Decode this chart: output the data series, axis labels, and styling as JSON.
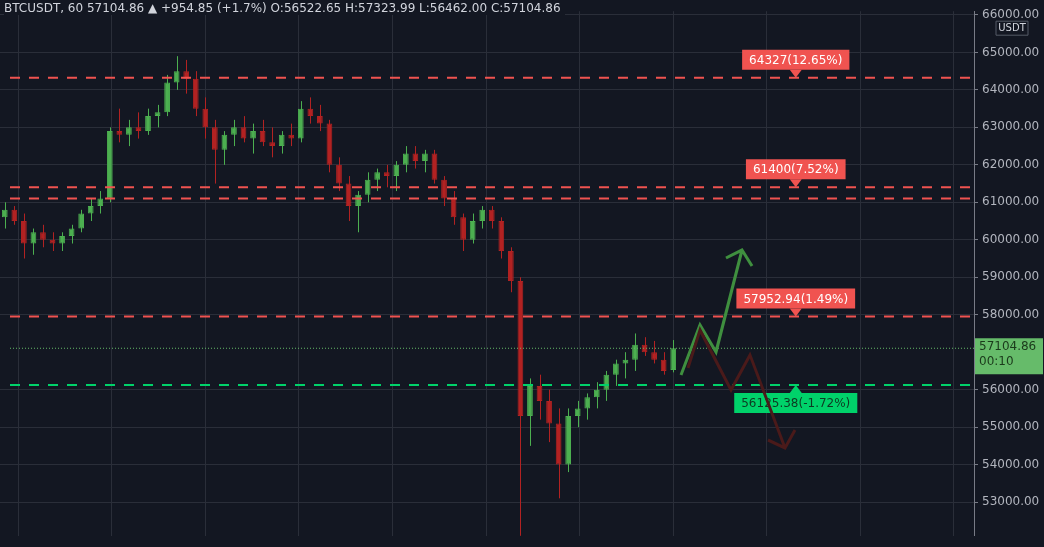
{
  "chart_data": {
    "type": "candlestick",
    "title": "BTCUSDT, 60 57104.86 ▲ +954.85 (+1.7%) O:56522.65 H:57323.99 L:56462.00 C:57104.86",
    "ylabel": "USDT",
    "categories": [
      null,
      null,
      null,
      null,
      null,
      null,
      null,
      null,
      null,
      null,
      null,
      null,
      null,
      null,
      null,
      null,
      null,
      null,
      null,
      null,
      null,
      null,
      null,
      null,
      null,
      null,
      null,
      null,
      null,
      null,
      null,
      null,
      null,
      null,
      null,
      null,
      null,
      null,
      null,
      null,
      null,
      null,
      null,
      null,
      null,
      null,
      null,
      null,
      null,
      null,
      null,
      null,
      null,
      null,
      null,
      null,
      null,
      null,
      null,
      null,
      null,
      null,
      null,
      null,
      null,
      null,
      null,
      null,
      null,
      null,
      null,
      null,
      null,
      null,
      null,
      null,
      null,
      null,
      null,
      null,
      null,
      null,
      null,
      null,
      null,
      null,
      null,
      null,
      null,
      null,
      null,
      null,
      null,
      null,
      null,
      null,
      null,
      null,
      null,
      null,
      null,
      null
    ],
    "ohlc": [
      [
        60600,
        61000,
        60300,
        60800
      ],
      [
        60800,
        60900,
        60400,
        60500
      ],
      [
        60500,
        60700,
        59500,
        59900
      ],
      [
        59900,
        60300,
        59600,
        60200
      ],
      [
        60200,
        60400,
        59800,
        60000
      ],
      [
        60000,
        60200,
        59700,
        59900
      ],
      [
        59900,
        60200,
        59700,
        60100
      ],
      [
        60100,
        60400,
        59900,
        60300
      ],
      [
        60300,
        60800,
        60200,
        60700
      ],
      [
        60700,
        61100,
        60500,
        60900
      ],
      [
        60900,
        61300,
        60700,
        61100
      ],
      [
        61100,
        63000,
        61000,
        62900
      ],
      [
        62900,
        63500,
        62600,
        62800
      ],
      [
        62800,
        63200,
        62500,
        63000
      ],
      [
        63000,
        63400,
        62700,
        62900
      ],
      [
        62900,
        63500,
        62800,
        63300
      ],
      [
        63300,
        63600,
        63000,
        63400
      ],
      [
        63400,
        64400,
        63300,
        64200
      ],
      [
        64200,
        64900,
        64000,
        64500
      ],
      [
        64500,
        64800,
        63900,
        64300
      ],
      [
        64300,
        64500,
        63300,
        63500
      ],
      [
        63500,
        63800,
        62700,
        63000
      ],
      [
        63000,
        63200,
        61500,
        62400
      ],
      [
        62400,
        62900,
        62000,
        62800
      ],
      [
        62800,
        63200,
        62500,
        63000
      ],
      [
        63000,
        63300,
        62600,
        62700
      ],
      [
        62700,
        63100,
        62300,
        62900
      ],
      [
        62900,
        63200,
        62500,
        62600
      ],
      [
        62600,
        63000,
        62200,
        62500
      ],
      [
        62500,
        62900,
        62300,
        62800
      ],
      [
        62800,
        63100,
        62500,
        62700
      ],
      [
        62700,
        63700,
        62600,
        63500
      ],
      [
        63500,
        63800,
        63100,
        63300
      ],
      [
        63300,
        63600,
        62900,
        63100
      ],
      [
        63100,
        63200,
        61800,
        62000
      ],
      [
        62000,
        62200,
        61300,
        61500
      ],
      [
        61500,
        61700,
        60500,
        60900
      ],
      [
        60900,
        61300,
        60200,
        61200
      ],
      [
        61200,
        61800,
        61000,
        61600
      ],
      [
        61600,
        61900,
        61300,
        61800
      ],
      [
        61800,
        62000,
        61400,
        61700
      ],
      [
        61700,
        62100,
        61300,
        62000
      ],
      [
        62000,
        62500,
        61800,
        62300
      ],
      [
        62300,
        62500,
        61900,
        62100
      ],
      [
        62100,
        62400,
        61800,
        62300
      ],
      [
        62300,
        62400,
        61500,
        61600
      ],
      [
        61600,
        61700,
        60900,
        61100
      ],
      [
        61100,
        61300,
        60400,
        60600
      ],
      [
        60600,
        60700,
        59700,
        60000
      ],
      [
        60000,
        60700,
        59900,
        60500
      ],
      [
        60500,
        60900,
        60300,
        60800
      ],
      [
        60800,
        60900,
        60300,
        60500
      ],
      [
        60500,
        60600,
        59500,
        59700
      ],
      [
        59700,
        59800,
        58600,
        58900
      ],
      [
        58900,
        59000,
        52100,
        55300
      ],
      [
        55300,
        56300,
        54500,
        56100
      ],
      [
        56100,
        56400,
        55200,
        55700
      ],
      [
        55700,
        56000,
        54600,
        55100
      ],
      [
        55100,
        55500,
        53100,
        54000
      ],
      [
        54000,
        55500,
        53800,
        55300
      ],
      [
        55300,
        55700,
        55000,
        55500
      ],
      [
        55500,
        55900,
        55200,
        55800
      ],
      [
        55800,
        56200,
        55500,
        56000
      ],
      [
        56000,
        56500,
        55700,
        56400
      ],
      [
        56400,
        56800,
        56100,
        56700
      ],
      [
        56700,
        57000,
        56300,
        56800
      ],
      [
        56800,
        57500,
        56500,
        57200
      ],
      [
        57200,
        57400,
        56900,
        57000
      ],
      [
        57000,
        57300,
        56700,
        56800
      ],
      [
        56800,
        57000,
        56400,
        56500
      ],
      [
        56522.65,
        57323.99,
        56462.0,
        57104.86
      ],
      null,
      null,
      null,
      null,
      null,
      null,
      null,
      null,
      null,
      null,
      null,
      null,
      null,
      null,
      null,
      null,
      null,
      null,
      null,
      null,
      null,
      null,
      null,
      null,
      null,
      null,
      null,
      null,
      null,
      null,
      null
    ],
    "colors": [
      "#4caf50",
      "#b22222",
      "#b22222",
      "#4caf50",
      "#b22222",
      "#b22222",
      "#4caf50",
      "#4caf50",
      "#4caf50",
      "#4caf50",
      "#4caf50",
      "#4caf50",
      "#b22222",
      "#4caf50",
      "#b22222",
      "#4caf50",
      "#4caf50",
      "#4caf50",
      "#4caf50",
      "#b22222",
      "#b22222",
      "#b22222",
      "#b22222",
      "#4caf50",
      "#4caf50",
      "#b22222",
      "#4caf50",
      "#b22222",
      "#b22222",
      "#4caf50",
      "#b22222",
      "#4caf50",
      "#b22222",
      "#b22222",
      "#b22222",
      "#b22222",
      "#b22222",
      "#4caf50",
      "#4caf50",
      "#4caf50",
      "#b22222",
      "#4caf50",
      "#4caf50",
      "#b22222",
      "#4caf50",
      "#b22222",
      "#b22222",
      "#b22222",
      "#b22222",
      "#4caf50",
      "#4caf50",
      "#b22222",
      "#b22222",
      "#b22222",
      "#b22222",
      "#4caf50",
      "#b22222",
      "#b22222",
      "#b22222",
      "#4caf50",
      "#4caf50",
      "#4caf50",
      "#4caf50",
      "#4caf50",
      "#4caf50",
      "#4caf50",
      "#4caf50",
      "#b22222",
      "#b22222",
      "#b22222",
      "#4caf50",
      null,
      null,
      null,
      null,
      null,
      null,
      null,
      null,
      null,
      null,
      null,
      null,
      null,
      null,
      null,
      null,
      null,
      null,
      null,
      null,
      null,
      null,
      null,
      null,
      null,
      null,
      null,
      null,
      null,
      null,
      null
    ],
    "ylim": [
      52100,
      66100
    ],
    "yticks": [
      {
        "value": 53000,
        "label": "53000.00"
      },
      {
        "value": 54000,
        "label": "54000.00"
      },
      {
        "value": 55000,
        "label": "55000.00"
      },
      {
        "value": 56000,
        "label": "56000.00"
      },
      {
        "value": 58000,
        "label": "58000.00"
      },
      {
        "value": 59000,
        "label": "59000.00"
      },
      {
        "value": 60000,
        "label": "60000.00"
      },
      {
        "value": 61000,
        "label": "61000.00"
      },
      {
        "value": 62000,
        "label": "62000.00"
      },
      {
        "value": 63000,
        "label": "63000.00"
      },
      {
        "value": 64000,
        "label": "64000.00"
      },
      {
        "value": 65000,
        "label": "65000.00"
      },
      {
        "value": 66000,
        "label": "66000.00"
      }
    ],
    "tick_labels": "y",
    "grid": true,
    "ref_lines": [
      {
        "axis": "y",
        "value": 64327,
        "label": "64327(12.65%)",
        "color": "#f05350",
        "line_style": "dashed"
      },
      {
        "axis": "y",
        "value": 61400,
        "label": "61400(7.52%)",
        "color": "#f05350",
        "line_style": "dashed"
      },
      {
        "axis": "y",
        "value": 61100,
        "color": "#f05350",
        "line_style": "dashed"
      },
      {
        "axis": "y",
        "value": 57952.94,
        "label": "57952.94(1.49%)",
        "color": "#f05350",
        "line_style": "dashed"
      },
      {
        "axis": "y",
        "value": 56125.38,
        "label": "56125.38(-1.72%)",
        "color": "#00d26a",
        "line_style": "dashed"
      },
      {
        "axis": "y",
        "value": 57104.86,
        "label": "57104.86\n00:10",
        "color": "#66bb6a",
        "line_style": "dotted"
      }
    ]
  }
}
